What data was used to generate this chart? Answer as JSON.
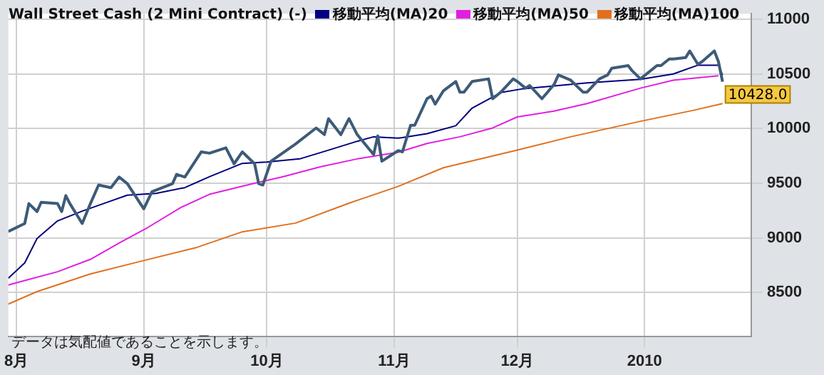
{
  "chart_data": {
    "type": "line",
    "title": "Wall Street Cash (2 Mini Contract) (-)",
    "xlim": [
      "2009-07-30",
      "2010-01-27"
    ],
    "xticks": [
      {
        "value": "2009-08-01",
        "label": "8月"
      },
      {
        "value": "2009-09-01",
        "label": "9月"
      },
      {
        "value": "2009-10-01",
        "label": "10月"
      },
      {
        "value": "2009-11-01",
        "label": "11月"
      },
      {
        "value": "2009-12-01",
        "label": "12月"
      },
      {
        "value": "2010-01-01",
        "label": "2010"
      }
    ],
    "ylim": [
      8100,
      11050
    ],
    "yticks": [
      8500,
      9000,
      9500,
      10000,
      10500,
      11000
    ],
    "grid": true,
    "legend": "top",
    "marker": "none",
    "annotations": [
      "データは気配値であることを示します。"
    ],
    "series": [
      {
        "color": "#3d5b78",
        "x": [
          "2009-07-30",
          "2009-08-03",
          "2009-08-04",
          "2009-08-06",
          "2009-08-07",
          "2009-08-11",
          "2009-08-12",
          "2009-08-13",
          "2009-08-14",
          "2009-08-17",
          "2009-08-19",
          "2009-08-21",
          "2009-08-24",
          "2009-08-26",
          "2009-08-28",
          "2009-09-01",
          "2009-09-03",
          "2009-09-08",
          "2009-09-09",
          "2009-09-11",
          "2009-09-15",
          "2009-09-17",
          "2009-09-21",
          "2009-09-23",
          "2009-09-25",
          "2009-09-28",
          "2009-09-29",
          "2009-09-30",
          "2009-10-02",
          "2009-10-08",
          "2009-10-13",
          "2009-10-15",
          "2009-10-16",
          "2009-10-19",
          "2009-10-21",
          "2009-10-23",
          "2009-10-27",
          "2009-10-28",
          "2009-10-29",
          "2009-11-02",
          "2009-11-03",
          "2009-11-05",
          "2009-11-06",
          "2009-11-09",
          "2009-11-10",
          "2009-11-11",
          "2009-11-13",
          "2009-11-16",
          "2009-11-17",
          "2009-11-18",
          "2009-11-20",
          "2009-11-24",
          "2009-11-25",
          "2009-11-27",
          "2009-11-30",
          "2009-12-01",
          "2009-12-03",
          "2009-12-04",
          "2009-12-07",
          "2009-12-10",
          "2009-12-11",
          "2009-12-14",
          "2009-12-17",
          "2009-12-18",
          "2009-12-21",
          "2009-12-23",
          "2009-12-24",
          "2009-12-28",
          "2009-12-29",
          "2009-12-31",
          "2010-01-04",
          "2010-01-05",
          "2010-01-07",
          "2010-01-08",
          "2010-01-11",
          "2010-01-12",
          "2010-01-14",
          "2010-01-15",
          "2010-01-18",
          "2010-01-19",
          "2010-01-20"
        ],
        "values": [
          9058,
          9131,
          9313,
          9240,
          9325,
          9313,
          9240,
          9386,
          9313,
          9131,
          9313,
          9483,
          9459,
          9556,
          9495,
          9265,
          9422,
          9495,
          9580,
          9556,
          9786,
          9774,
          9823,
          9677,
          9786,
          9677,
          9495,
          9483,
          9701,
          9859,
          10005,
          9944,
          10090,
          9944,
          10090,
          9944,
          9762,
          9932,
          9701,
          9798,
          9786,
          10029,
          10029,
          10272,
          10296,
          10223,
          10345,
          10430,
          10333,
          10333,
          10430,
          10454,
          10272,
          10333,
          10454,
          10430,
          10369,
          10393,
          10272,
          10405,
          10490,
          10442,
          10333,
          10333,
          10454,
          10490,
          10551,
          10575,
          10527,
          10454,
          10575,
          10575,
          10636,
          10636,
          10648,
          10709,
          10587,
          10611,
          10709,
          10611,
          10428
        ],
        "value_labels": [
          null,
          null,
          null,
          null,
          null,
          null,
          null,
          null,
          null,
          null,
          null,
          null,
          null,
          null,
          null,
          null,
          null,
          null,
          null,
          null,
          null,
          null,
          null,
          null,
          null,
          null,
          null,
          null,
          null,
          null,
          null,
          null,
          null,
          null,
          null,
          null,
          null,
          null,
          null,
          null,
          null,
          null,
          null,
          null,
          null,
          null,
          null,
          null,
          null,
          null,
          null,
          null,
          null,
          null,
          null,
          null,
          null,
          null,
          null,
          null,
          null,
          null,
          null,
          null,
          null,
          null,
          null,
          null,
          null,
          null,
          null,
          null,
          null,
          null,
          null,
          null,
          null,
          null,
          null,
          null,
          "10428.0"
        ]
      },
      {
        "name": "移動平均(MA)20",
        "color": "#000080",
        "x": [
          "2009-07-30",
          "2009-08-03",
          "2009-08-06",
          "2009-08-11",
          "2009-08-17",
          "2009-08-24",
          "2009-08-28",
          "2009-09-04",
          "2009-09-11",
          "2009-09-17",
          "2009-09-25",
          "2009-10-01",
          "2009-10-09",
          "2009-10-16",
          "2009-10-23",
          "2009-10-27",
          "2009-11-02",
          "2009-11-03",
          "2009-11-09",
          "2009-11-16",
          "2009-11-20",
          "2009-11-27",
          "2009-12-02",
          "2009-12-10",
          "2009-12-18",
          "2009-12-31",
          "2010-01-08",
          "2010-01-14",
          "2010-01-19",
          "2010-01-20"
        ],
        "values": [
          8630,
          8771,
          8994,
          9155,
          9244,
          9337,
          9390,
          9407,
          9459,
          9559,
          9681,
          9693,
          9722,
          9802,
          9883,
          9924,
          9912,
          9916,
          9953,
          10025,
          10187,
          10329,
          10361,
          10390,
          10417,
          10450,
          10499,
          10579,
          10579,
          10490
        ]
      },
      {
        "name": "移動平均(MA)50",
        "color": "#e020e0",
        "x": [
          "2009-07-30",
          "2009-08-03",
          "2009-08-11",
          "2009-08-19",
          "2009-08-26",
          "2009-09-02",
          "2009-09-10",
          "2009-09-17",
          "2009-09-28",
          "2009-10-05",
          "2009-10-14",
          "2009-10-23",
          "2009-11-02",
          "2009-11-09",
          "2009-11-17",
          "2009-11-25",
          "2009-12-01",
          "2009-12-10",
          "2009-12-18",
          "2009-12-31",
          "2010-01-08",
          "2010-01-19"
        ],
        "values": [
          8569,
          8609,
          8690,
          8803,
          8953,
          9095,
          9277,
          9398,
          9499,
          9560,
          9649,
          9722,
          9783,
          9863,
          9924,
          10005,
          10106,
          10159,
          10228,
          10369,
          10442,
          10482
        ]
      },
      {
        "name": "移動平均(MA)100",
        "color": "#e07020",
        "x": [
          "2009-07-30",
          "2009-08-06",
          "2009-08-19",
          "2009-08-31",
          "2009-09-14",
          "2009-09-25",
          "2009-10-08",
          "2009-10-21",
          "2009-11-02",
          "2009-11-13",
          "2009-12-01",
          "2009-12-14",
          "2009-12-31",
          "2010-01-13",
          "2010-01-20"
        ],
        "values": [
          8394,
          8508,
          8670,
          8783,
          8913,
          9055,
          9135,
          9317,
          9471,
          9641,
          9802,
          9924,
          10066,
          10167,
          10228
        ]
      }
    ]
  }
}
